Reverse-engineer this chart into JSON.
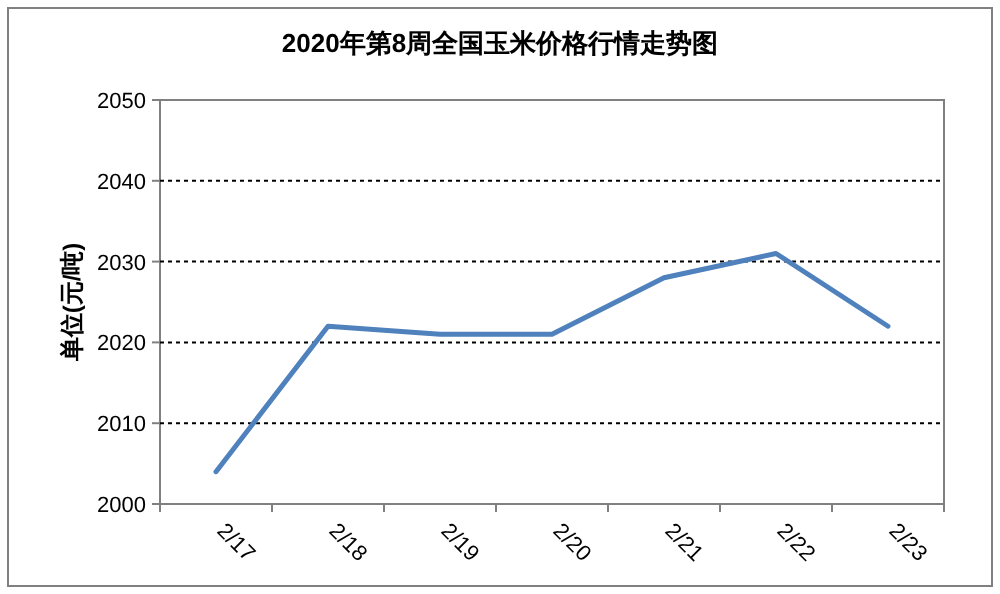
{
  "chart_data": {
    "type": "line",
    "title": "2020年第8周全国玉米价格行情走势图",
    "ylabel": "单位(元/吨)",
    "categories": [
      "2/17",
      "2/18",
      "2/19",
      "2/20",
      "2/21",
      "2/22",
      "2/23"
    ],
    "series": [
      {
        "color": "#4f81bd",
        "values": [
          2004,
          2022,
          2021,
          2021,
          2028,
          2031,
          2022
        ]
      }
    ],
    "ylim": [
      2000,
      2050
    ],
    "yticks": [
      2000,
      2010,
      2020,
      2030,
      2040,
      2050
    ],
    "grid": "y",
    "marker": "none",
    "line_style": "solid"
  }
}
